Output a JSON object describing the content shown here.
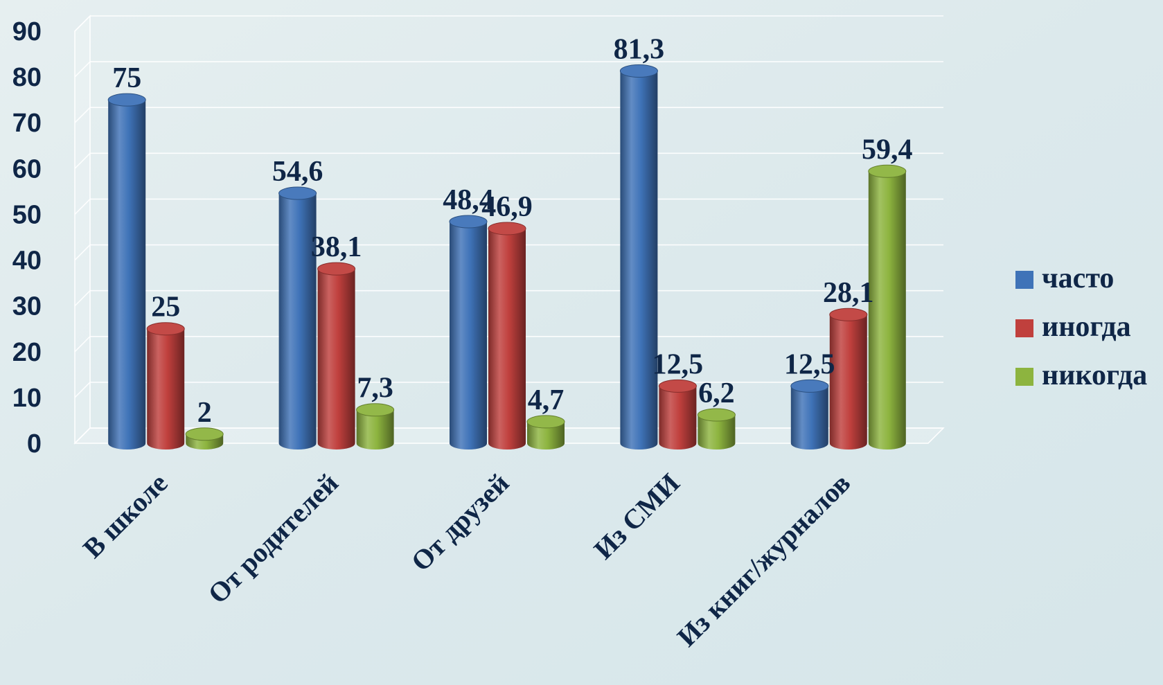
{
  "chart_data": {
    "type": "bar",
    "categories": [
      "В школе",
      "От родителей",
      "От друзей",
      "Из СМИ",
      "Из книг/журналов"
    ],
    "series": [
      {
        "name": "часто",
        "values": [
          75,
          54.6,
          48.4,
          81.3,
          12.5
        ],
        "color": "#3f73b8"
      },
      {
        "name": "иногда",
        "values": [
          25,
          38.1,
          46.9,
          12.5,
          28.1
        ],
        "color": "#c0403d"
      },
      {
        "name": "никогда",
        "values": [
          2,
          7.3,
          4.7,
          6.2,
          59.4
        ],
        "color": "#8db43f"
      }
    ],
    "value_labels": [
      [
        "75",
        "54,6",
        "48,4",
        "81,3",
        "12,5"
      ],
      [
        "25",
        "38,1",
        "46,9",
        "12,5",
        "28,1"
      ],
      [
        "2",
        "7,3",
        "4,7",
        "6,2",
        "59,4"
      ]
    ],
    "y_ticks": [
      "0",
      "10",
      "20",
      "30",
      "40",
      "50",
      "60",
      "70",
      "80",
      "90"
    ],
    "ylim": [
      0,
      90
    ],
    "grid": true,
    "legend_position": "right",
    "style": "3d-cylinder"
  }
}
